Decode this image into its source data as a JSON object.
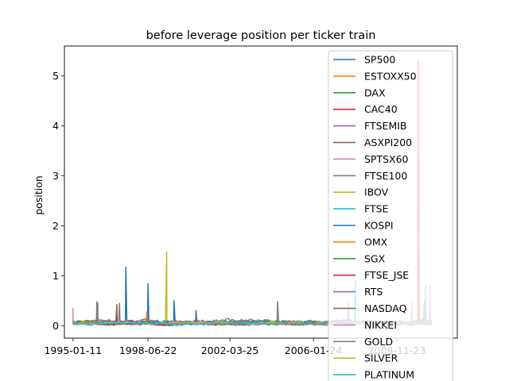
{
  "chart_data": {
    "type": "line",
    "title": "before leverage position per ticker train",
    "xlabel": "",
    "ylabel": "position",
    "xticks": [
      "1995-01-11",
      "1998-06-22",
      "2002-03-25",
      "2006-01-24",
      "2009-11-23"
    ],
    "xlim": [
      "1994-08-20",
      "2012-09-01"
    ],
    "ylim": [
      -0.25,
      5.6
    ],
    "yticks": [
      0,
      1,
      2,
      3,
      4,
      5
    ],
    "grid": false,
    "legend_placement": "upper right",
    "x_start": "1995-01-11",
    "x_end": "2011-06-30",
    "series": [
      {
        "name": "SP500",
        "color": "#1f77b4",
        "base": 0.06,
        "amp": 0.05,
        "spikes": [
          [
            "1997-06-15",
            1.17
          ],
          [
            "1998-06-22",
            0.84
          ],
          [
            "1999-09-01",
            0.5
          ]
        ]
      },
      {
        "name": "ESTOXX50",
        "color": "#ff7f0e",
        "base": 0.05,
        "amp": 0.05,
        "spikes": [
          [
            "1998-06-01",
            0.28
          ]
        ]
      },
      {
        "name": "DAX",
        "color": "#2ca02c",
        "base": 0.04,
        "amp": 0.04,
        "spikes": []
      },
      {
        "name": "CAC40",
        "color": "#d62728",
        "base": 0.04,
        "amp": 0.03,
        "spikes": [
          [
            "2010-11-15",
            5.3
          ],
          [
            "2011-03-01",
            0.5
          ]
        ]
      },
      {
        "name": "FTSEMIB",
        "color": "#9467bd",
        "base": 0.05,
        "amp": 0.04,
        "spikes": []
      },
      {
        "name": "ASXPI200",
        "color": "#8c564b",
        "base": 0.07,
        "amp": 0.06,
        "spikes": [
          [
            "1996-03-01",
            0.45
          ],
          [
            "1997-01-15",
            0.42
          ]
        ]
      },
      {
        "name": "SPTSX60",
        "color": "#e377c2",
        "base": 0.05,
        "amp": 0.05,
        "spikes": [
          [
            "1995-01-11",
            0.35
          ],
          [
            "2011-06-01",
            0.8
          ]
        ]
      },
      {
        "name": "FTSE100",
        "color": "#7f7f7f",
        "base": 0.08,
        "amp": 0.07,
        "spikes": [
          [
            "1996-02-15",
            0.48
          ],
          [
            "1997-03-01",
            0.45
          ],
          [
            "2004-06-01",
            0.48
          ],
          [
            "2007-09-01",
            0.45
          ],
          [
            "2011-03-15",
            0.8
          ]
        ]
      },
      {
        "name": "IBOV",
        "color": "#bcbd22",
        "base": 0.06,
        "amp": 0.05,
        "spikes": [
          [
            "1999-05-01",
            1.48
          ]
        ]
      },
      {
        "name": "FTSE",
        "color": "#17becf",
        "base": 0.06,
        "amp": 0.05,
        "spikes": [
          [
            "2008-01-01",
            0.9
          ]
        ]
      },
      {
        "name": "KOSPI",
        "color": "#1f77b4",
        "base": 0.07,
        "amp": 0.06,
        "spikes": [
          [
            "2000-09-01",
            0.3
          ]
        ]
      },
      {
        "name": "OMX",
        "color": "#ff7f0e",
        "base": 0.05,
        "amp": 0.04,
        "spikes": []
      },
      {
        "name": "SGX",
        "color": "#2ca02c",
        "base": 0.04,
        "amp": 0.04,
        "spikes": []
      },
      {
        "name": "FTSE_JSE",
        "color": "#d62728",
        "base": 0.03,
        "amp": 0.03,
        "spikes": []
      },
      {
        "name": "RTS",
        "color": "#9467bd",
        "base": 0.04,
        "amp": 0.04,
        "spikes": []
      },
      {
        "name": "NASDAQ",
        "color": "#8c564b",
        "base": 0.05,
        "amp": 0.04,
        "spikes": []
      },
      {
        "name": "NIKKEI",
        "color": "#e377c2",
        "base": 0.06,
        "amp": 0.05,
        "spikes": [
          [
            "2010-08-01",
            0.5
          ]
        ]
      },
      {
        "name": "GOLD",
        "color": "#7f7f7f",
        "base": 0.06,
        "amp": 0.05,
        "spikes": []
      },
      {
        "name": "SILVER",
        "color": "#bcbd22",
        "base": 0.05,
        "amp": 0.04,
        "spikes": []
      },
      {
        "name": "PLATINUM",
        "color": "#17becf",
        "base": 0.04,
        "amp": 0.03,
        "spikes": []
      }
    ]
  }
}
